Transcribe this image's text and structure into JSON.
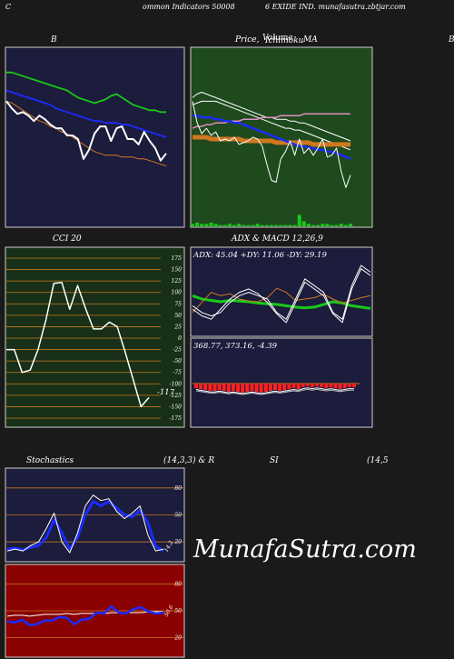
{
  "header": {
    "left": "C",
    "middle": "ommon  Indicators 50008",
    "right": "6  EXIDE IND. munafasutra.zbtjar.com"
  },
  "titles": {
    "bb": "B",
    "price": "Price,",
    "volume": "Volume",
    "overlap": "Ichimoku",
    "ma": "MA",
    "edge": "B",
    "cci": "CCI 20",
    "adx": "ADX  & MACD 12,26,9",
    "stoch_left": "Stochastics",
    "stoch_mid": "(14,3,3) & R",
    "rsi": "SI",
    "rsi_params": "(14,5"
  },
  "watermark": "MunafaSutra.com",
  "colors": {
    "bb_bg": "#1c1c3c",
    "price_bg": "#1e4a1e",
    "cci_bg": "#173017",
    "adx_bg": "#1c1c3c",
    "stoch_bg": "#1c1c3c",
    "rsi_bg": "#8b0000",
    "grid": "#c87a1e",
    "white": "#ffffff",
    "green": "#18c818",
    "blue": "#1a2cff",
    "orange": "#d07820",
    "pink": "#e090c0",
    "macd_red": "#ff2020"
  },
  "chart_data": [
    {
      "type": "line",
      "panel": "bb",
      "title": "B",
      "ylim": [
        0,
        100
      ],
      "series": [
        {
          "color": "green",
          "values": [
            86,
            86,
            85,
            84,
            83,
            82,
            81,
            80,
            79,
            78,
            77,
            76,
            74,
            72,
            71,
            70,
            69,
            70,
            71,
            73,
            74,
            72,
            70,
            68,
            67,
            66,
            65,
            65,
            64,
            64
          ]
        },
        {
          "color": "blue",
          "values": [
            76,
            75,
            74,
            73,
            72,
            71,
            70,
            69,
            68,
            66,
            65,
            64,
            63,
            62,
            61,
            60,
            59,
            59,
            58,
            58,
            58,
            57,
            57,
            56,
            55,
            54,
            53,
            52,
            51,
            50
          ]
        },
        {
          "color": "orange",
          "values": [
            70,
            69,
            67,
            65,
            63,
            61,
            59,
            58,
            56,
            55,
            53,
            52,
            50,
            48,
            46,
            44,
            42,
            41,
            40,
            40,
            40,
            39,
            39,
            39,
            38,
            38,
            37,
            36,
            35,
            34
          ]
        },
        {
          "color": "white",
          "values": [
            70,
            66,
            63,
            64,
            62,
            59,
            62,
            60,
            57,
            55,
            55,
            51,
            51,
            49,
            38,
            43,
            52,
            56,
            56,
            48,
            55,
            56,
            49,
            49,
            46,
            53,
            48,
            44,
            37,
            41
          ]
        }
      ]
    },
    {
      "type": "line",
      "panel": "price",
      "ylim": [
        0,
        100
      ],
      "series": [
        {
          "color": "white",
          "values": [
            72,
            74,
            75,
            74,
            73,
            72,
            71,
            70,
            69,
            68,
            67,
            66,
            65,
            64,
            63,
            62,
            61,
            61,
            60,
            60,
            60,
            59,
            59,
            58,
            58,
            57,
            56,
            55,
            54,
            53,
            52,
            51,
            50,
            49,
            48
          ]
        },
        {
          "color": "white",
          "values": [
            68,
            69,
            70,
            70,
            70,
            70,
            69,
            68,
            67,
            66,
            65,
            64,
            63,
            62,
            61,
            60,
            59,
            58,
            57,
            56,
            55,
            55,
            54,
            54,
            53,
            52,
            51,
            50,
            49,
            48,
            47,
            46,
            45,
            44,
            43
          ]
        },
        {
          "color": "pink",
          "values": [
            55,
            56,
            56,
            57,
            57,
            58,
            58,
            58,
            59,
            59,
            59,
            60,
            60,
            60,
            60,
            61,
            61,
            61,
            61,
            62,
            62,
            62,
            62,
            62,
            63,
            63,
            63,
            63,
            63,
            63,
            63,
            63,
            63,
            63,
            63
          ]
        },
        {
          "color": "orange",
          "values": [
            50,
            50,
            50,
            50,
            49,
            49,
            49,
            49,
            49,
            49,
            49,
            48,
            48,
            48,
            48,
            48,
            48,
            48,
            47,
            47,
            47,
            47,
            47,
            47,
            47,
            47,
            46,
            46,
            46,
            46,
            46,
            46,
            46,
            46,
            46
          ]
        },
        {
          "color": "blue",
          "values": [
            62,
            62,
            61,
            61,
            61,
            60,
            60,
            59,
            59,
            58,
            58,
            57,
            56,
            55,
            54,
            53,
            52,
            51,
            50,
            49,
            48,
            47,
            46,
            45,
            45,
            44,
            44,
            43,
            43,
            42,
            42,
            41,
            40,
            39,
            38
          ]
        },
        {
          "color": "white",
          "values": [
            70,
            58,
            52,
            55,
            51,
            53,
            48,
            49,
            48,
            50,
            46,
            47,
            48,
            50,
            49,
            45,
            35,
            26,
            25,
            38,
            42,
            48,
            40,
            49,
            41,
            44,
            40,
            44,
            49,
            39,
            40,
            44,
            31,
            22,
            29
          ]
        }
      ],
      "volume": [
        2,
        3,
        2,
        2,
        3,
        2,
        1,
        1,
        2,
        1,
        2,
        1,
        1,
        1,
        2,
        1,
        1,
        1,
        1,
        1,
        1,
        1,
        1,
        9,
        4,
        2,
        1,
        1,
        2,
        2,
        1,
        1,
        2,
        1,
        2
      ]
    },
    {
      "type": "line",
      "panel": "cci",
      "title": "CCI 20",
      "ylim": [
        -175,
        175
      ],
      "ticks": [
        175,
        150,
        125,
        100,
        75,
        50,
        25,
        0,
        -25,
        -50,
        -75,
        -100,
        -125,
        -150,
        -175
      ],
      "tick_labels": [
        "175",
        "150",
        "125",
        "100",
        "75",
        "50",
        "25",
        "0",
        "-25",
        "-50",
        "-75",
        "-100",
        "-125",
        "-150",
        "-175"
      ],
      "last_label": "-117",
      "values": [
        -25,
        -25,
        -75,
        -70,
        -25,
        40,
        120,
        122,
        63,
        115,
        65,
        20,
        20,
        35,
        25,
        -30,
        -90,
        -150,
        -130
      ]
    },
    {
      "type": "line",
      "panel": "adx",
      "title": "ADX  & MACD 12,26,9",
      "label": "ADX: 45.04  +DY: 11.06  -DY: 29.19",
      "ylim": [
        0,
        100
      ],
      "series": [
        {
          "color": "green",
          "values": [
            55,
            50,
            48,
            46,
            48,
            47,
            46,
            44,
            43,
            42,
            40,
            38,
            37,
            38,
            42,
            46,
            44,
            40,
            38,
            36
          ]
        },
        {
          "color": "orange",
          "values": [
            30,
            45,
            60,
            55,
            58,
            50,
            47,
            46,
            52,
            66,
            60,
            48,
            50,
            52,
            57,
            50,
            44,
            48,
            52,
            55
          ]
        },
        {
          "color": "white",
          "values": [
            40,
            30,
            25,
            30,
            45,
            55,
            60,
            55,
            50,
            30,
            20,
            50,
            80,
            70,
            60,
            30,
            20,
            70,
            100,
            90
          ]
        },
        {
          "color": "white",
          "values": [
            35,
            25,
            20,
            35,
            50,
            60,
            65,
            58,
            45,
            28,
            15,
            45,
            75,
            65,
            55,
            28,
            15,
            65,
            95,
            85
          ]
        }
      ]
    },
    {
      "type": "bar",
      "panel": "macd",
      "label": "368.77,  373.16,  -4.39",
      "ylim": [
        -10,
        10
      ],
      "values": [
        -5,
        -6,
        -7,
        -8,
        -8,
        -7,
        -8,
        -9,
        -8,
        -9,
        -10,
        -9,
        -8,
        -9,
        -10,
        -9,
        -8,
        -7,
        -8,
        -7,
        -6,
        -5,
        -6,
        -4,
        -3,
        -4,
        -3,
        -4,
        -5,
        -4,
        -5,
        -6,
        -5,
        -4,
        -4
      ]
    },
    {
      "type": "line",
      "panel": "stoch",
      "title": "Stochastics",
      "ylim": [
        0,
        100
      ],
      "ticks": [
        80,
        50,
        20
      ],
      "tick_labels": [
        "80",
        "50",
        "20"
      ],
      "last_label": "14.2",
      "series": [
        {
          "color": "blue",
          "values": [
            12,
            13,
            11,
            14,
            16,
            25,
            45,
            30,
            12,
            25,
            50,
            65,
            60,
            65,
            58,
            50,
            48,
            55,
            42,
            15,
            10
          ]
        },
        {
          "color": "white",
          "values": [
            10,
            12,
            10,
            16,
            20,
            35,
            52,
            20,
            8,
            30,
            60,
            72,
            66,
            68,
            54,
            46,
            52,
            60,
            28,
            10,
            12
          ]
        }
      ]
    },
    {
      "type": "line",
      "panel": "rsi",
      "title": "SI",
      "ylim": [
        0,
        100
      ],
      "ticks": [
        80,
        50,
        20
      ],
      "tick_labels": [
        "80",
        "50",
        "20"
      ],
      "last_label": "50.6",
      "series": [
        {
          "color": "white",
          "values": [
            44,
            45,
            45,
            44,
            45,
            46,
            46,
            46,
            47,
            46,
            47,
            47,
            47,
            47,
            48,
            48,
            48,
            48,
            48,
            49,
            49,
            49
          ]
        },
        {
          "color": "blue",
          "values": [
            38,
            37,
            40,
            34,
            35,
            39,
            39,
            43,
            42,
            35,
            40,
            41,
            48,
            47,
            55,
            48,
            47,
            52,
            54,
            49,
            47,
            48
          ]
        }
      ]
    }
  ]
}
